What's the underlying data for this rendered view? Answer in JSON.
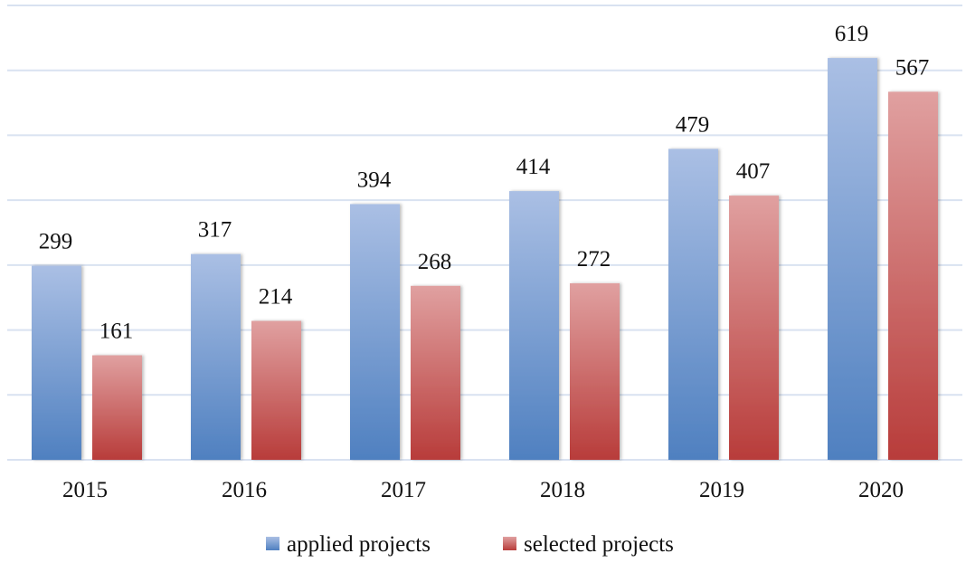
{
  "chart_data": {
    "type": "bar",
    "title": "",
    "xlabel": "",
    "ylabel": "",
    "categories": [
      "2015",
      "2016",
      "2017",
      "2018",
      "2019",
      "2020"
    ],
    "series": [
      {
        "name": "applied projects",
        "values": [
          299,
          317,
          394,
          414,
          479,
          619
        ],
        "color_top": "#aabfe4",
        "color_bottom": "#4f80c0"
      },
      {
        "name": "selected projects",
        "values": [
          161,
          214,
          268,
          272,
          407,
          567
        ],
        "color_top": "#e0a0a0",
        "color_bottom": "#b83c3a"
      }
    ],
    "ylim": [
      0,
      700
    ],
    "ytick_step": 100,
    "grid": true,
    "y_axis_labels_shown": false,
    "data_labels": true,
    "legend": {
      "position": "bottom",
      "entries": [
        "applied projects",
        "selected projects"
      ]
    },
    "gridline_color": "#d9e2f1"
  }
}
